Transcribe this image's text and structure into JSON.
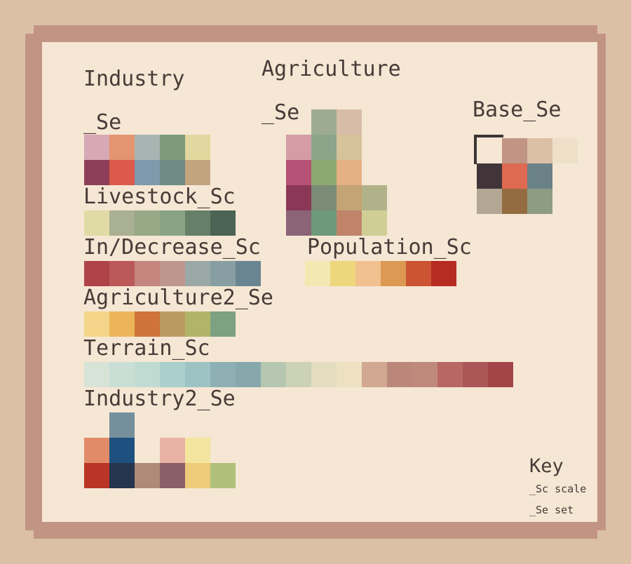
{
  "labels": {
    "industry": "Industry",
    "industry_se": "_Se",
    "agriculture": "Agriculture",
    "agriculture_se": "_Se",
    "base_se": "Base_Se",
    "livestock": "Livestock_Sc",
    "indecrease": "In/Decrease_Sc",
    "population": "Population_Sc",
    "agriculture2": "Agriculture2_Se",
    "terrain": "Terrain_Sc",
    "industry2": "Industry2_Se"
  },
  "key": {
    "title": "Key",
    "sc": "_Sc scale",
    "se": "_Se set"
  },
  "palettes": {
    "industry": [
      [
        "#d7a9b4",
        "#e39470",
        "#a6b5b2",
        "#7c9a7a",
        "#e2d89f"
      ],
      [
        "#8e3e59",
        "#dc5a4b",
        "#7f9aac",
        "#6f8985",
        "#c2a47f"
      ]
    ],
    "agriculture": [
      [
        null,
        "#9dab92",
        "#d7bca8"
      ],
      [
        "#d49da6",
        "#8ca48a",
        "#d6c29b"
      ],
      [
        "#b55275",
        "#8ea873",
        "#e5b083"
      ],
      [
        "#8b3756",
        "#7a8c76",
        "#c4a474",
        "#b1b28a"
      ],
      [
        "#8b6478",
        "#6e9a7b",
        "#c0846a",
        "#cfcf95"
      ]
    ],
    "base": [
      [
        null,
        "#c29484",
        "#dbc0a5",
        "#eee0c8"
      ],
      [
        "#413539",
        "#df6a52",
        "#6a8188"
      ],
      [
        "#b3a692",
        "#946c42",
        "#8e9c84"
      ]
    ],
    "livestock": [
      "#e0dba5",
      "#aab093",
      "#97a986",
      "#89a383",
      "#657f68",
      "#4b6453"
    ],
    "indecrease": [
      "#ae434a",
      "#bb5959",
      "#c4867f",
      "#bf968d",
      "#9aa9a6",
      "#879ea2",
      "#6a8592"
    ],
    "population": [
      "#f3e8b1",
      "#ecd77c",
      "#f1c08f",
      "#db9953",
      "#cc5433",
      "#b62c22"
    ],
    "agriculture2": [
      "#f5d589",
      "#ecb559",
      "#cf733a",
      "#bb9a62",
      "#b2b468",
      "#7ca282"
    ],
    "terrain": [
      "#d8e3d7",
      "#c9dfd5",
      "#c0dcd2",
      "#abcfcc",
      "#9ec3c5",
      "#8eb0b5",
      "#86a8ad",
      "#b5c7b0",
      "#cbd2b6",
      "#e3dcbf",
      "#ede1c2",
      "#d1a891",
      "#bc877b",
      "#bf8a7c",
      "#b76864",
      "#ac5658",
      "#a34548"
    ],
    "industry2": [
      [
        null,
        "#758f9c"
      ],
      [
        "#e28b68",
        "#1e5180",
        null,
        "#e8b3a5",
        "#f4e59e"
      ],
      [
        "#ba3526",
        "#25354e",
        "#ae8a7a",
        "#8b5e6b",
        "#eeca79",
        "#b0c07a"
      ]
    ]
  }
}
